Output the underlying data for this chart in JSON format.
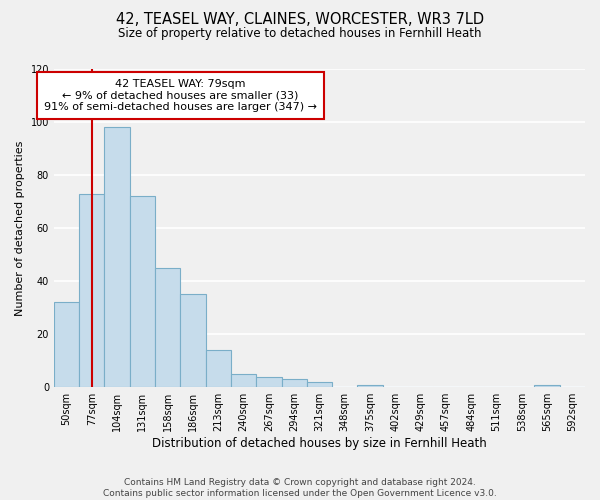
{
  "title": "42, TEASEL WAY, CLAINES, WORCESTER, WR3 7LD",
  "subtitle": "Size of property relative to detached houses in Fernhill Heath",
  "xlabel": "Distribution of detached houses by size in Fernhill Heath",
  "ylabel": "Number of detached properties",
  "bin_labels": [
    "50sqm",
    "77sqm",
    "104sqm",
    "131sqm",
    "158sqm",
    "186sqm",
    "213sqm",
    "240sqm",
    "267sqm",
    "294sqm",
    "321sqm",
    "348sqm",
    "375sqm",
    "402sqm",
    "429sqm",
    "457sqm",
    "484sqm",
    "511sqm",
    "538sqm",
    "565sqm",
    "592sqm"
  ],
  "bar_heights": [
    32,
    73,
    98,
    72,
    45,
    35,
    14,
    5,
    4,
    3,
    2,
    0,
    1,
    0,
    0,
    0,
    0,
    0,
    0,
    1,
    0
  ],
  "bar_color": "#c6dceb",
  "bar_edge_color": "#7aaec8",
  "vline_x": 1,
  "vline_color": "#cc0000",
  "annotation_text": "42 TEASEL WAY: 79sqm\n← 9% of detached houses are smaller (33)\n91% of semi-detached houses are larger (347) →",
  "annotation_box_color": "#ffffff",
  "annotation_box_edge": "#cc0000",
  "ylim": [
    0,
    120
  ],
  "yticks": [
    0,
    20,
    40,
    60,
    80,
    100,
    120
  ],
  "footnote": "Contains HM Land Registry data © Crown copyright and database right 2024.\nContains public sector information licensed under the Open Government Licence v3.0.",
  "fig_bg": "#f0f0f0",
  "ax_bg": "#f0f0f0",
  "grid_color": "#ffffff",
  "title_fontsize": 10.5,
  "subtitle_fontsize": 8.5,
  "xlabel_fontsize": 8.5,
  "ylabel_fontsize": 8,
  "tick_fontsize": 7,
  "annotation_fontsize": 8,
  "footnote_fontsize": 6.5
}
